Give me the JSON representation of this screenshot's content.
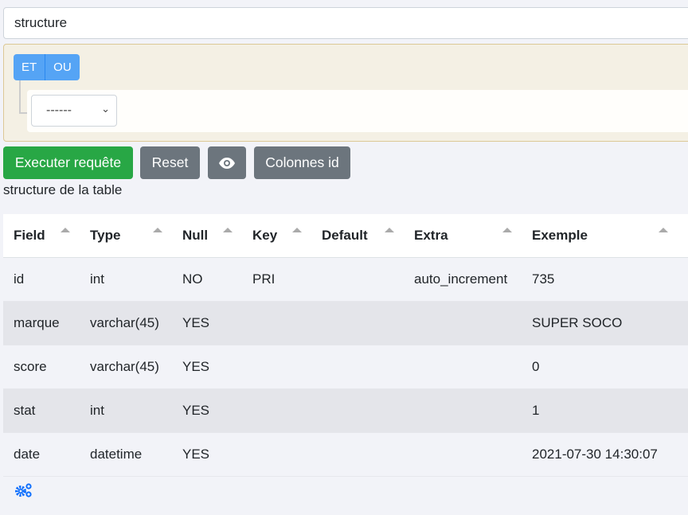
{
  "search": {
    "value": "structure"
  },
  "query_builder": {
    "and_label": "ET",
    "or_label": "OU",
    "rule_select": "------"
  },
  "buttons": {
    "execute": "Executer requête",
    "reset": "Reset",
    "preview_icon": "eye-icon",
    "columns": "Colonnes id"
  },
  "caption": "structure de la table",
  "table": {
    "headers": [
      "Field",
      "Type",
      "Null",
      "Key",
      "Default",
      "Extra",
      "Exemple"
    ],
    "rows": [
      [
        "id",
        "int",
        "NO",
        "PRI",
        "",
        "auto_increment",
        "735"
      ],
      [
        "marque",
        "varchar(45)",
        "YES",
        "",
        "",
        "",
        "SUPER SOCO"
      ],
      [
        "score",
        "varchar(45)",
        "YES",
        "",
        "",
        "",
        "0"
      ],
      [
        "stat",
        "int",
        "YES",
        "",
        "",
        "",
        "1"
      ],
      [
        "date",
        "datetime",
        "YES",
        "",
        "",
        "",
        "2021-07-30 14:30:07"
      ]
    ]
  },
  "footer_icon": "gears-icon",
  "colors": {
    "primary": "#55a4f5",
    "success": "#28a745",
    "secondary": "#6c757d"
  }
}
